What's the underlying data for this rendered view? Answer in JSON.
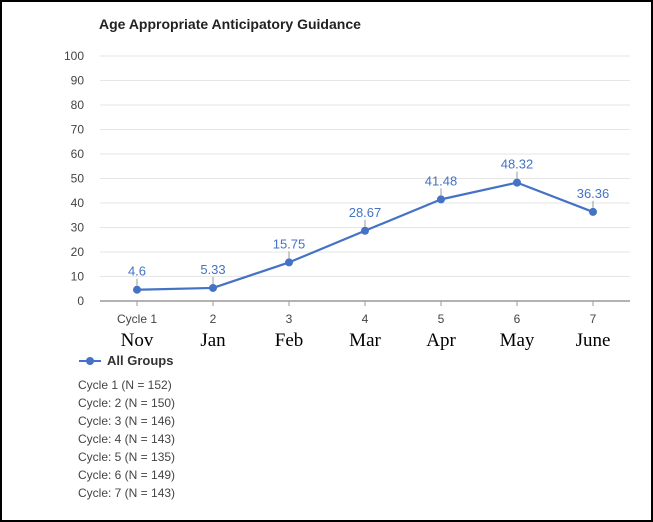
{
  "chart_data": {
    "type": "line",
    "title": "Age Appropriate Anticipatory Guidance",
    "categories": [
      "Cycle 1",
      "2",
      "3",
      "4",
      "5",
      "6",
      "7"
    ],
    "month_labels": [
      "Nov",
      "Jan",
      "Feb",
      "Mar",
      "Apr",
      "May",
      "June"
    ],
    "series": [
      {
        "name": "All Groups",
        "values": [
          4.6,
          5.33,
          15.75,
          28.67,
          41.48,
          48.32,
          36.36
        ]
      }
    ],
    "data_labels": [
      "4.6",
      "5.33",
      "15.75",
      "28.67",
      "41.48",
      "48.32",
      "36.36"
    ],
    "ylim": [
      0,
      100
    ],
    "yticks": [
      0,
      10,
      20,
      30,
      40,
      50,
      60,
      70,
      80,
      90,
      100
    ],
    "grid": true,
    "legend_position": "bottom-left",
    "colors": {
      "series": "#4472C4",
      "grid": "#e6e6e6",
      "axis": "#999999"
    }
  },
  "notes": [
    "Cycle 1 (N = 152)",
    "Cycle: 2 (N = 150)",
    "Cycle: 3 (N = 146)",
    "Cycle: 4 (N = 143)",
    "Cycle: 5 (N = 135)",
    "Cycle: 6 (N = 149)",
    "Cycle: 7 (N = 143)"
  ]
}
